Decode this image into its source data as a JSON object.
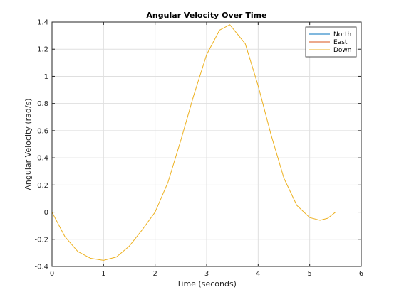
{
  "chart_data": {
    "type": "line",
    "title": "Angular Velocity Over Time",
    "xlabel": "Time (seconds)",
    "ylabel": "Angular Velocity (rad/s)",
    "xlim": [
      0,
      6
    ],
    "ylim": [
      -0.4,
      1.4
    ],
    "xticks": [
      0,
      1,
      2,
      3,
      4,
      5,
      6
    ],
    "yticks": [
      -0.4,
      -0.2,
      0,
      0.2,
      0.4,
      0.6,
      0.8,
      1,
      1.2,
      1.4
    ],
    "xtick_labels": [
      "0",
      "1",
      "2",
      "3",
      "4",
      "5",
      "6"
    ],
    "ytick_labels": [
      "-0.4",
      "-0.2",
      "0",
      "0.2",
      "0.4",
      "0.6",
      "0.8",
      "1",
      "1.2",
      "1.4"
    ],
    "grid": true,
    "legend_position": "top-right",
    "series": [
      {
        "name": "North",
        "color": "#0072bd",
        "x": [
          0,
          5.5
        ],
        "y": [
          0,
          0
        ]
      },
      {
        "name": "East",
        "color": "#d95319",
        "x": [
          0,
          5.5
        ],
        "y": [
          0,
          0
        ]
      },
      {
        "name": "Down",
        "color": "#edb120",
        "x": [
          0,
          0.25,
          0.5,
          0.75,
          1.0,
          1.25,
          1.5,
          1.75,
          2.0,
          2.25,
          2.5,
          2.75,
          3.0,
          3.25,
          3.45,
          3.75,
          4.0,
          4.25,
          4.5,
          4.75,
          5.0,
          5.2,
          5.35,
          5.5
        ],
        "y": [
          0,
          -0.18,
          -0.29,
          -0.34,
          -0.355,
          -0.33,
          -0.25,
          -0.13,
          0.0,
          0.22,
          0.53,
          0.86,
          1.16,
          1.34,
          1.38,
          1.24,
          0.93,
          0.57,
          0.25,
          0.05,
          -0.04,
          -0.06,
          -0.045,
          0.0
        ]
      }
    ]
  }
}
